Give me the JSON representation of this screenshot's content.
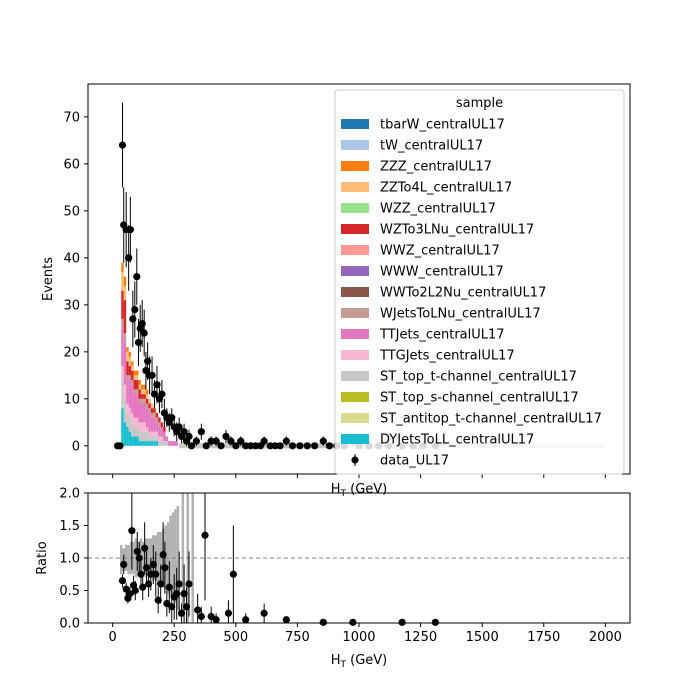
{
  "chart_data": [
    {
      "type": "bar",
      "ylabel": "Events",
      "xlabel": "H_T (GeV)",
      "xlim": [
        -100,
        2100
      ],
      "ylim": [
        -6,
        77
      ],
      "y_ticks": [
        0,
        10,
        20,
        30,
        40,
        50,
        60,
        70
      ],
      "legend": {
        "title": "sample",
        "placement": "top-right",
        "entries": [
          {
            "name": "tbarW_centralUL17",
            "color": "#1f77b4"
          },
          {
            "name": "tW_centralUL17",
            "color": "#aec7e8"
          },
          {
            "name": "ZZZ_centralUL17",
            "color": "#ff7f0e"
          },
          {
            "name": "ZZTo4L_centralUL17",
            "color": "#ffbb78"
          },
          {
            "name": "WZZ_centralUL17",
            "color": "#98df8a"
          },
          {
            "name": "WZTo3LNu_centralUL17",
            "color": "#d62728"
          },
          {
            "name": "WWZ_centralUL17",
            "color": "#ff9896"
          },
          {
            "name": "WWW_centralUL17",
            "color": "#9467bd"
          },
          {
            "name": "WWTo2L2Nu_centralUL17",
            "color": "#8c564b"
          },
          {
            "name": "WJetsToLNu_centralUL17",
            "color": "#c49c94"
          },
          {
            "name": "TTJets_centralUL17",
            "color": "#e377c2"
          },
          {
            "name": "TTGJets_centralUL17",
            "color": "#f7b6d2"
          },
          {
            "name": "ST_top_t-channel_centralUL17",
            "color": "#c7c7c7"
          },
          {
            "name": "ST_top_s-channel_centralUL17",
            "color": "#bcbd22"
          },
          {
            "name": "ST_antitop_t-channel_centralUL17",
            "color": "#dbdb8d"
          },
          {
            "name": "DYJetsToLL_centralUL17",
            "color": "#17becf"
          },
          {
            "name": "data_UL17",
            "color": "#000000",
            "marker": "errorbar"
          }
        ]
      },
      "bin_width": 10,
      "mc_stack": [
        {
          "x": 40,
          "DY": 8,
          "STt": 6,
          "TTG": 3,
          "TTJ": 8,
          "WJ": 2,
          "WZ": 6,
          "ZZ4L": 4,
          "ZZZ": 2
        },
        {
          "x": 50,
          "DY": 5,
          "STt": 5,
          "TTG": 3,
          "TTJ": 9,
          "WJ": 2,
          "WZ": 7,
          "ZZ4L": 3,
          "ZZZ": 2
        },
        {
          "x": 60,
          "DY": 4,
          "STt": 3,
          "TTG": 2,
          "TTJ": 5,
          "WJ": 1,
          "WZ": 3,
          "ZZ4L": 2,
          "ZZZ": 1
        },
        {
          "x": 70,
          "DY": 3,
          "STt": 3,
          "TTG": 2,
          "TTJ": 6,
          "WJ": 1,
          "WZ": 2,
          "ZZ4L": 2,
          "ZZZ": 1
        },
        {
          "x": 80,
          "DY": 2,
          "STt": 3,
          "TTG": 2,
          "TTJ": 6,
          "WJ": 1,
          "WZ": 2,
          "ZZ4L": 1,
          "ZZZ": 1
        },
        {
          "x": 90,
          "DY": 2,
          "STt": 2,
          "TTG": 2,
          "TTJ": 5,
          "WJ": 1,
          "WZ": 2,
          "ZZ4L": 1,
          "ZZZ": 1
        },
        {
          "x": 100,
          "DY": 2,
          "STt": 2,
          "TTG": 2,
          "TTJ": 5,
          "WJ": 1,
          "WZ": 2,
          "ZZ4L": 1,
          "ZZZ": 1
        },
        {
          "x": 110,
          "DY": 1,
          "STt": 2,
          "TTG": 2,
          "TTJ": 4,
          "WJ": 1,
          "WZ": 2,
          "ZZ4L": 1,
          "ZZZ": 1
        },
        {
          "x": 120,
          "DY": 1,
          "STt": 2,
          "TTG": 2,
          "TTJ": 4,
          "WJ": 1,
          "WZ": 1,
          "ZZ4L": 1,
          "ZZZ": 1
        },
        {
          "x": 130,
          "DY": 1,
          "STt": 2,
          "TTG": 2,
          "TTJ": 4,
          "WJ": 1,
          "WZ": 1,
          "ZZ4L": 1,
          "ZZZ": 1
        },
        {
          "x": 140,
          "DY": 1,
          "STt": 2,
          "TTG": 1,
          "TTJ": 4,
          "WJ": 1,
          "WZ": 1,
          "ZZ4L": 1,
          "ZZZ": 1
        },
        {
          "x": 150,
          "DY": 1,
          "STt": 1,
          "TTG": 1,
          "TTJ": 4,
          "WJ": 1,
          "WZ": 1,
          "ZZ4L": 1,
          "ZZZ": 0
        },
        {
          "x": 160,
          "DY": 1,
          "STt": 1,
          "TTG": 1,
          "TTJ": 3,
          "WJ": 1,
          "WZ": 1,
          "ZZ4L": 1,
          "ZZZ": 0
        },
        {
          "x": 170,
          "DY": 1,
          "STt": 1,
          "TTG": 1,
          "TTJ": 3,
          "WJ": 1,
          "WZ": 1,
          "ZZ4L": 0,
          "ZZZ": 0
        },
        {
          "x": 180,
          "DY": 1,
          "STt": 1,
          "TTG": 1,
          "TTJ": 2,
          "WJ": 1,
          "WZ": 1,
          "ZZ4L": 0,
          "ZZZ": 0
        },
        {
          "x": 190,
          "DY": 0,
          "STt": 1,
          "TTG": 1,
          "TTJ": 2,
          "WJ": 1,
          "WZ": 1,
          "ZZ4L": 0,
          "ZZZ": 0
        },
        {
          "x": 200,
          "DY": 0,
          "STt": 1,
          "TTG": 1,
          "TTJ": 2,
          "WJ": 0,
          "WZ": 1,
          "ZZ4L": 0,
          "ZZZ": 0
        },
        {
          "x": 210,
          "DY": 0,
          "STt": 1,
          "TTG": 0,
          "TTJ": 2,
          "WJ": 0,
          "WZ": 1,
          "ZZ4L": 0,
          "ZZZ": 0
        },
        {
          "x": 220,
          "DY": 0,
          "STt": 1,
          "TTG": 0,
          "TTJ": 1,
          "WJ": 0,
          "WZ": 0,
          "ZZ4L": 0,
          "ZZZ": 0
        },
        {
          "x": 230,
          "DY": 0,
          "STt": 0,
          "TTG": 0,
          "TTJ": 1,
          "WJ": 0,
          "WZ": 0,
          "ZZ4L": 0,
          "ZZZ": 0
        },
        {
          "x": 240,
          "DY": 0,
          "STt": 0,
          "TTG": 0,
          "TTJ": 1,
          "WJ": 0,
          "WZ": 0,
          "ZZ4L": 0,
          "ZZZ": 0
        },
        {
          "x": 250,
          "DY": 0,
          "STt": 0,
          "TTG": 0,
          "TTJ": 1,
          "WJ": 0,
          "WZ": 0,
          "ZZ4L": 0,
          "ZZZ": 0
        },
        {
          "x": 260,
          "DY": 0,
          "STt": 0,
          "TTG": 0,
          "TTJ": 1,
          "WJ": 0,
          "WZ": 0,
          "ZZ4L": 0,
          "ZZZ": 0
        }
      ],
      "data_points": [
        {
          "x": 20,
          "y": 0,
          "err": 0
        },
        {
          "x": 30,
          "y": 0,
          "err": 0
        },
        {
          "x": 40,
          "y": 64,
          "err": 9
        },
        {
          "x": 45,
          "y": 47,
          "err": 8
        },
        {
          "x": 55,
          "y": 46,
          "err": 8
        },
        {
          "x": 65,
          "y": 40,
          "err": 7
        },
        {
          "x": 72,
          "y": 46,
          "err": 7
        },
        {
          "x": 82,
          "y": 27,
          "err": 6
        },
        {
          "x": 90,
          "y": 29,
          "err": 6
        },
        {
          "x": 98,
          "y": 36,
          "err": 6
        },
        {
          "x": 105,
          "y": 22,
          "err": 5
        },
        {
          "x": 112,
          "y": 25,
          "err": 5
        },
        {
          "x": 120,
          "y": 26,
          "err": 5
        },
        {
          "x": 128,
          "y": 24,
          "err": 5
        },
        {
          "x": 135,
          "y": 16,
          "err": 4
        },
        {
          "x": 142,
          "y": 18,
          "err": 4
        },
        {
          "x": 150,
          "y": 15,
          "err": 4
        },
        {
          "x": 160,
          "y": 15,
          "err": 4
        },
        {
          "x": 170,
          "y": 11,
          "err": 3
        },
        {
          "x": 180,
          "y": 13,
          "err": 4
        },
        {
          "x": 190,
          "y": 10,
          "err": 3
        },
        {
          "x": 200,
          "y": 11,
          "err": 3
        },
        {
          "x": 210,
          "y": 7,
          "err": 3
        },
        {
          "x": 220,
          "y": 6,
          "err": 2
        },
        {
          "x": 230,
          "y": 5,
          "err": 2
        },
        {
          "x": 240,
          "y": 6,
          "err": 2
        },
        {
          "x": 250,
          "y": 4,
          "err": 2
        },
        {
          "x": 260,
          "y": 3,
          "err": 2
        },
        {
          "x": 270,
          "y": 4,
          "err": 2
        },
        {
          "x": 280,
          "y": 2,
          "err": 1.5
        },
        {
          "x": 290,
          "y": 3,
          "err": 1.7
        },
        {
          "x": 300,
          "y": 1,
          "err": 1
        },
        {
          "x": 310,
          "y": 2,
          "err": 1.4
        },
        {
          "x": 320,
          "y": 0,
          "err": 0
        },
        {
          "x": 340,
          "y": 1,
          "err": 1
        },
        {
          "x": 360,
          "y": 3,
          "err": 1.7
        },
        {
          "x": 380,
          "y": 0,
          "err": 0
        },
        {
          "x": 400,
          "y": 1,
          "err": 1
        },
        {
          "x": 420,
          "y": 1,
          "err": 1
        },
        {
          "x": 440,
          "y": 0,
          "err": 0
        },
        {
          "x": 460,
          "y": 2,
          "err": 1.4
        },
        {
          "x": 480,
          "y": 1,
          "err": 1
        },
        {
          "x": 500,
          "y": 0,
          "err": 0
        },
        {
          "x": 520,
          "y": 1,
          "err": 1
        },
        {
          "x": 540,
          "y": 0,
          "err": 0
        },
        {
          "x": 560,
          "y": 0,
          "err": 0
        },
        {
          "x": 580,
          "y": 0,
          "err": 0
        },
        {
          "x": 600,
          "y": 0,
          "err": 0
        },
        {
          "x": 615,
          "y": 1,
          "err": 1
        },
        {
          "x": 640,
          "y": 0,
          "err": 0
        },
        {
          "x": 660,
          "y": 0,
          "err": 0
        },
        {
          "x": 680,
          "y": 0,
          "err": 0
        },
        {
          "x": 705,
          "y": 1,
          "err": 1
        },
        {
          "x": 730,
          "y": 0,
          "err": 0
        },
        {
          "x": 760,
          "y": 0,
          "err": 0
        },
        {
          "x": 790,
          "y": 0,
          "err": 0
        },
        {
          "x": 820,
          "y": 0,
          "err": 0
        },
        {
          "x": 855,
          "y": 1,
          "err": 1
        },
        {
          "x": 880,
          "y": 0,
          "err": 0
        },
        {
          "x": 910,
          "y": 0,
          "err": 0
        },
        {
          "x": 940,
          "y": 0,
          "err": 0
        },
        {
          "x": 975,
          "y": 1,
          "err": 1
        },
        {
          "x": 1000,
          "y": 0,
          "err": 0
        },
        {
          "x": 1040,
          "y": 0,
          "err": 0
        },
        {
          "x": 1080,
          "y": 0,
          "err": 0
        },
        {
          "x": 1120,
          "y": 0,
          "err": 0
        },
        {
          "x": 1175,
          "y": 0,
          "err": 0
        },
        {
          "x": 1220,
          "y": 0,
          "err": 0
        },
        {
          "x": 1260,
          "y": 0,
          "err": 0
        },
        {
          "x": 1310,
          "y": 0,
          "err": 0
        }
      ]
    },
    {
      "type": "scatter",
      "ylabel": "Ratio",
      "xlabel": "H_T (GeV)",
      "xlim": [
        -100,
        2100
      ],
      "ylim": [
        0,
        2.0
      ],
      "x_ticks": [
        0,
        250,
        500,
        750,
        1000,
        1250,
        1500,
        1750,
        2000
      ],
      "y_ticks": [
        "0.0",
        "0.5",
        "1.0",
        "1.5",
        "2.0"
      ],
      "reference_line": 1.0,
      "uncertainty_band": [
        {
          "x0": 30,
          "x1": 40,
          "lo": 0.75,
          "hi": 1.2
        },
        {
          "x0": 40,
          "x1": 50,
          "lo": 0.8,
          "hi": 1.15
        },
        {
          "x0": 50,
          "x1": 60,
          "lo": 0.8,
          "hi": 1.2
        },
        {
          "x0": 60,
          "x1": 70,
          "lo": 0.75,
          "hi": 1.2
        },
        {
          "x0": 70,
          "x1": 80,
          "lo": 0.75,
          "hi": 1.25
        },
        {
          "x0": 80,
          "x1": 90,
          "lo": 0.75,
          "hi": 1.25
        },
        {
          "x0": 90,
          "x1": 100,
          "lo": 0.7,
          "hi": 1.3
        },
        {
          "x0": 100,
          "x1": 110,
          "lo": 0.75,
          "hi": 1.25
        },
        {
          "x0": 110,
          "x1": 120,
          "lo": 0.7,
          "hi": 1.3
        },
        {
          "x0": 120,
          "x1": 130,
          "lo": 0.75,
          "hi": 1.25
        },
        {
          "x0": 130,
          "x1": 140,
          "lo": 0.7,
          "hi": 1.3
        },
        {
          "x0": 140,
          "x1": 150,
          "lo": 0.75,
          "hi": 1.3
        },
        {
          "x0": 150,
          "x1": 160,
          "lo": 0.7,
          "hi": 1.3
        },
        {
          "x0": 160,
          "x1": 170,
          "lo": 0.65,
          "hi": 1.35
        },
        {
          "x0": 170,
          "x1": 180,
          "lo": 0.65,
          "hi": 1.35
        },
        {
          "x0": 180,
          "x1": 190,
          "lo": 0.6,
          "hi": 1.4
        },
        {
          "x0": 190,
          "x1": 200,
          "lo": 0.6,
          "hi": 1.4
        },
        {
          "x0": 200,
          "x1": 210,
          "lo": 0.55,
          "hi": 1.45
        },
        {
          "x0": 210,
          "x1": 220,
          "lo": 0.5,
          "hi": 1.5
        },
        {
          "x0": 220,
          "x1": 230,
          "lo": 0.45,
          "hi": 1.55
        },
        {
          "x0": 230,
          "x1": 240,
          "lo": 0.4,
          "hi": 1.65
        },
        {
          "x0": 240,
          "x1": 250,
          "lo": 0.35,
          "hi": 1.7
        },
        {
          "x0": 250,
          "x1": 260,
          "lo": 0.3,
          "hi": 1.75
        },
        {
          "x0": 260,
          "x1": 270,
          "lo": 0.2,
          "hi": 1.8
        },
        {
          "x0": 280,
          "x1": 290,
          "lo": 0.1,
          "hi": 2.0
        },
        {
          "x0": 300,
          "x1": 310,
          "lo": 0.0,
          "hi": 2.0
        },
        {
          "x0": 320,
          "x1": 330,
          "lo": 0.0,
          "hi": 2.0
        }
      ],
      "points": [
        {
          "x": 40,
          "y": 0.65,
          "err": 0.1
        },
        {
          "x": 45,
          "y": 0.9,
          "err": 0.15
        },
        {
          "x": 55,
          "y": 0.52,
          "err": 0.1
        },
        {
          "x": 62,
          "y": 0.38,
          "err": 0.08
        },
        {
          "x": 70,
          "y": 0.45,
          "err": 0.1
        },
        {
          "x": 78,
          "y": 1.42,
          "err": 0.6
        },
        {
          "x": 85,
          "y": 0.58,
          "err": 0.15
        },
        {
          "x": 92,
          "y": 0.5,
          "err": 0.15
        },
        {
          "x": 100,
          "y": 1.1,
          "err": 0.3
        },
        {
          "x": 108,
          "y": 1.0,
          "err": 0.25
        },
        {
          "x": 115,
          "y": 0.75,
          "err": 0.2
        },
        {
          "x": 122,
          "y": 0.55,
          "err": 0.2
        },
        {
          "x": 130,
          "y": 1.15,
          "err": 0.4
        },
        {
          "x": 138,
          "y": 0.85,
          "err": 0.25
        },
        {
          "x": 146,
          "y": 0.6,
          "err": 0.2
        },
        {
          "x": 155,
          "y": 0.75,
          "err": 0.25
        },
        {
          "x": 165,
          "y": 0.9,
          "err": 0.3
        },
        {
          "x": 175,
          "y": 0.75,
          "err": 0.35
        },
        {
          "x": 185,
          "y": 0.35,
          "err": 0.2
        },
        {
          "x": 195,
          "y": 0.6,
          "err": 0.3
        },
        {
          "x": 205,
          "y": 1.05,
          "err": 0.5
        },
        {
          "x": 212,
          "y": 0.85,
          "err": 0.4
        },
        {
          "x": 220,
          "y": 0.3,
          "err": 0.2
        },
        {
          "x": 230,
          "y": 0.55,
          "err": 0.4
        },
        {
          "x": 240,
          "y": 0.25,
          "err": 0.25
        },
        {
          "x": 250,
          "y": 0.4,
          "err": 0.35
        },
        {
          "x": 260,
          "y": 0.45,
          "err": 0.4
        },
        {
          "x": 270,
          "y": 0.6,
          "err": 0.5
        },
        {
          "x": 280,
          "y": 0.15,
          "err": 0.15
        },
        {
          "x": 290,
          "y": 0.45,
          "err": 0.45
        },
        {
          "x": 300,
          "y": 0.25,
          "err": 0.3
        },
        {
          "x": 310,
          "y": 0.6,
          "err": 0.5
        },
        {
          "x": 345,
          "y": 0.2,
          "err": 0.25
        },
        {
          "x": 360,
          "y": 0.1,
          "err": 0.15
        },
        {
          "x": 375,
          "y": 1.35,
          "err": 1.0
        },
        {
          "x": 400,
          "y": 0.1,
          "err": 0.15
        },
        {
          "x": 420,
          "y": 0.05,
          "err": 0.1
        },
        {
          "x": 470,
          "y": 0.15,
          "err": 0.2
        },
        {
          "x": 490,
          "y": 0.75,
          "err": 0.75
        },
        {
          "x": 540,
          "y": 0.05,
          "err": 0.1
        },
        {
          "x": 615,
          "y": 0.15,
          "err": 0.15
        },
        {
          "x": 705,
          "y": 0.05,
          "err": 0.05
        },
        {
          "x": 855,
          "y": 0.01,
          "err": 0.0
        },
        {
          "x": 975,
          "y": 0.01,
          "err": 0.0
        },
        {
          "x": 1175,
          "y": 0.01,
          "err": 0.0
        },
        {
          "x": 1310,
          "y": 0.01,
          "err": 0.0
        }
      ]
    }
  ]
}
